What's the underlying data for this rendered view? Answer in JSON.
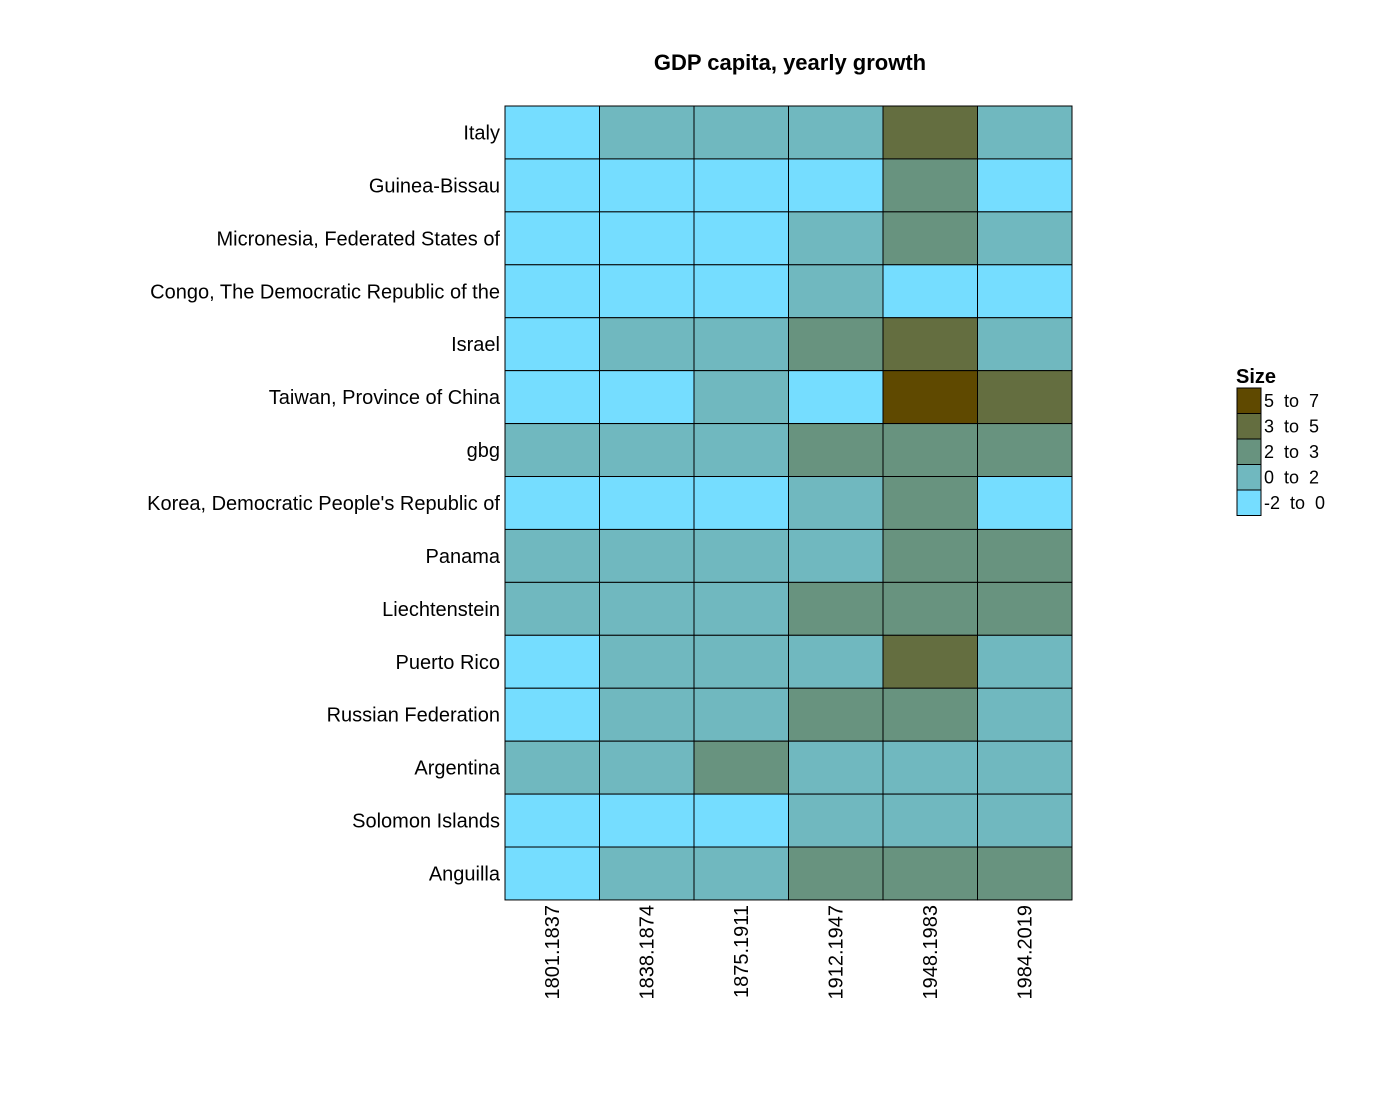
{
  "chart_data": {
    "type": "heatmap",
    "title": "GDP capita, yearly growth",
    "columns": [
      "1801.1837",
      "1838.1874",
      "1875.1911",
      "1912.1947",
      "1948.1983",
      "1984.2019"
    ],
    "rows": [
      "Italy",
      "Guinea-Bissau",
      "Micronesia, Federated States of",
      "Congo, The Democratic Republic of the",
      "Israel",
      "Taiwan, Province of China",
      "gbg",
      "Korea, Democratic People's Republic of",
      "Panama",
      "Liechtenstein",
      "Puerto Rico",
      "Russian Federation",
      "Argentina",
      "Solomon Islands",
      "Anguilla"
    ],
    "values": [
      [
        0,
        1,
        1,
        1,
        3,
        1
      ],
      [
        0,
        0,
        0,
        0,
        2,
        0
      ],
      [
        0,
        0,
        0,
        1,
        2,
        1
      ],
      [
        0,
        0,
        0,
        1,
        0,
        0
      ],
      [
        0,
        1,
        1,
        2,
        3,
        1
      ],
      [
        0,
        0,
        1,
        0,
        4,
        3
      ],
      [
        1,
        1,
        1,
        2,
        2,
        2
      ],
      [
        0,
        0,
        0,
        1,
        2,
        0
      ],
      [
        1,
        1,
        1,
        1,
        2,
        2
      ],
      [
        1,
        1,
        1,
        2,
        2,
        2
      ],
      [
        0,
        1,
        1,
        1,
        3,
        1
      ],
      [
        0,
        1,
        1,
        2,
        2,
        1
      ],
      [
        1,
        1,
        2,
        1,
        1,
        1
      ],
      [
        0,
        0,
        0,
        1,
        1,
        1
      ],
      [
        0,
        1,
        1,
        2,
        2,
        2
      ]
    ],
    "legend": {
      "title": "Size",
      "position": "right",
      "bins": [
        {
          "label": "-2  to  0",
          "color": "#75DDFF"
        },
        {
          "label": "0  to  2",
          "color": "#70B8BF"
        },
        {
          "label": "2  to  3",
          "color": "#68937F"
        },
        {
          "label": "3  to  5",
          "color": "#646E40"
        },
        {
          "label": "5  to  7",
          "color": "#5F4900"
        }
      ]
    }
  }
}
